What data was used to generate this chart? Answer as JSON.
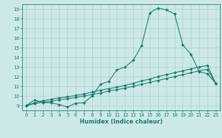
{
  "title": "",
  "xlabel": "Humidex (Indice chaleur)",
  "background_color": "#cde8e8",
  "grid_color": "#aacfcf",
  "line_color": "#1a7a6e",
  "xlim": [
    -0.5,
    23.5
  ],
  "ylim": [
    8.5,
    19.5
  ],
  "xticks": [
    0,
    1,
    2,
    3,
    4,
    5,
    6,
    7,
    8,
    9,
    10,
    11,
    12,
    13,
    14,
    15,
    16,
    17,
    18,
    19,
    20,
    21,
    22,
    23
  ],
  "yticks": [
    9,
    10,
    11,
    12,
    13,
    14,
    15,
    16,
    17,
    18,
    19
  ],
  "line1_y": [
    9.0,
    9.6,
    9.3,
    9.3,
    9.1,
    8.85,
    9.25,
    9.3,
    10.0,
    11.2,
    11.5,
    12.7,
    13.0,
    13.7,
    15.2,
    18.6,
    19.1,
    18.9,
    18.5,
    15.3,
    14.3,
    12.5,
    12.3,
    11.3
  ],
  "line2_y": [
    9.0,
    9.3,
    9.5,
    9.65,
    9.8,
    9.9,
    10.05,
    10.2,
    10.4,
    10.6,
    10.75,
    10.9,
    11.1,
    11.3,
    11.55,
    11.75,
    12.0,
    12.2,
    12.4,
    12.6,
    12.8,
    13.0,
    13.15,
    11.3
  ],
  "line3_y": [
    9.0,
    9.2,
    9.35,
    9.45,
    9.6,
    9.7,
    9.85,
    10.0,
    10.15,
    10.3,
    10.5,
    10.65,
    10.8,
    11.0,
    11.2,
    11.4,
    11.6,
    11.8,
    12.0,
    12.2,
    12.4,
    12.6,
    12.75,
    11.3
  ],
  "tick_fontsize": 5.0,
  "xlabel_fontsize": 6.0,
  "marker_size": 2.0,
  "line_width": 0.8
}
